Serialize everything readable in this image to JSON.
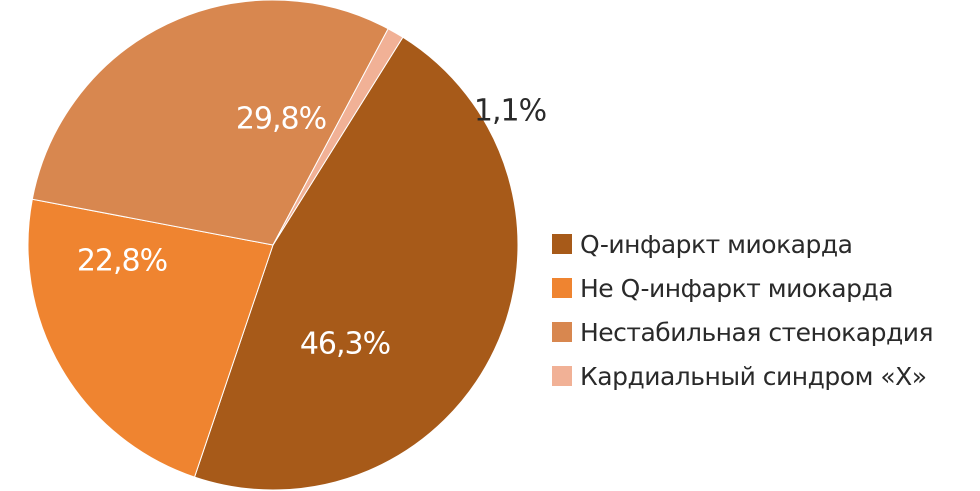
{
  "chart_data": {
    "type": "pie",
    "title": "",
    "series": [
      {
        "name": "Q-инфаркт миокарда",
        "value": 46.3,
        "label": "46,3%",
        "color": "#a75a19"
      },
      {
        "name": "Не Q-инфаркт миокарда",
        "value": 22.8,
        "label": "22,8%",
        "color": "#ef8430"
      },
      {
        "name": "Нестабильная стенокардия",
        "value": 29.8,
        "label": "29,8%",
        "color": "#d8874f"
      },
      {
        "name": "Кардиальный синдром «Х»",
        "value": 1.1,
        "label": "1,1%",
        "color": "#f1b196"
      }
    ],
    "start_angle_deg": -58,
    "direction": "clockwise",
    "legend_position": "right"
  }
}
